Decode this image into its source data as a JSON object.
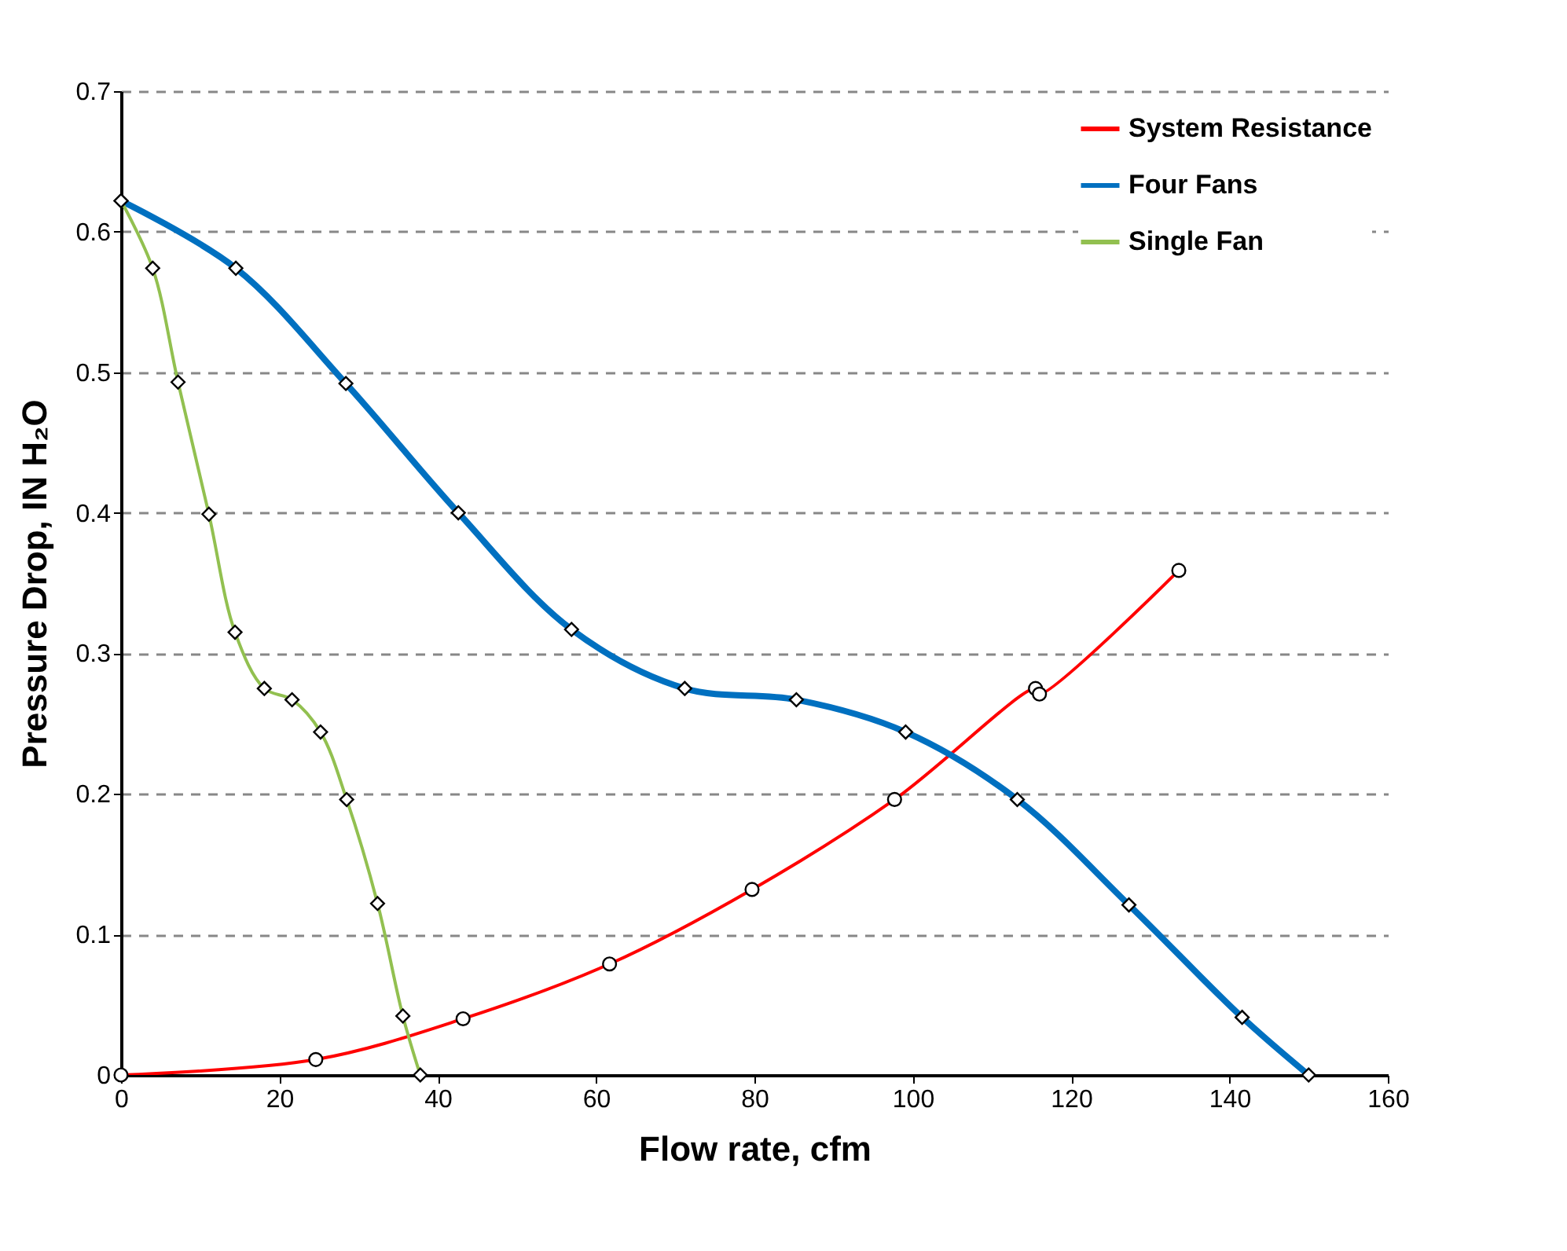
{
  "chart_data": {
    "type": "line",
    "xlabel": "Flow rate, cfm",
    "ylabel": "Pressure Drop, IN H₂O",
    "xlim": [
      0,
      160
    ],
    "xticks": [
      0,
      20,
      40,
      60,
      80,
      100,
      120,
      140,
      160
    ],
    "ylim": [
      0,
      0.7
    ],
    "yticks": [
      0,
      0.1,
      0.2,
      0.3,
      0.4,
      0.5,
      0.6,
      0.7
    ],
    "grid": "y",
    "legend": "top right",
    "line_style": "solid",
    "series": [
      {
        "name": "System Resistance",
        "color": "#ff0000",
        "marker": "circle",
        "x": [
          0,
          24.6,
          43.2,
          61.7,
          79.7,
          97.7,
          115.5,
          116,
          133.6
        ],
        "values": [
          0,
          0.011,
          0.04,
          0.079,
          0.132,
          0.196,
          0.275,
          0.271,
          0.359
        ]
      },
      {
        "name": "Four Fans",
        "color": "#0070c0",
        "marker": "diamond",
        "x": [
          0,
          14.5,
          28.4,
          42.6,
          56.9,
          71.2,
          85.3,
          99.1,
          113.2,
          127.3,
          141.6,
          150
        ],
        "values": [
          0.622,
          0.574,
          0.492,
          0.4,
          0.317,
          0.275,
          0.267,
          0.244,
          0.196,
          0.121,
          0.041,
          0
        ]
      },
      {
        "name": "Single Fan",
        "color": "#92c050",
        "marker": "diamond",
        "x": [
          0,
          4.0,
          7.2,
          11.1,
          14.4,
          18.1,
          21.6,
          25.2,
          28.5,
          32.4,
          35.6,
          37.8
        ],
        "values": [
          0.622,
          0.574,
          0.493,
          0.399,
          0.315,
          0.275,
          0.267,
          0.244,
          0.196,
          0.122,
          0.042,
          0
        ]
      }
    ]
  }
}
